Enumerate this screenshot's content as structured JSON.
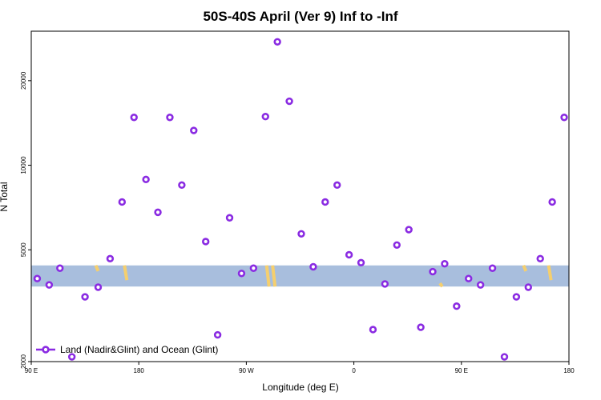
{
  "chart_data": {
    "type": "scatter",
    "title": "50S-40S April (Ver 9)   Inf to -Inf",
    "xlabel": "Longitude (deg E)",
    "ylabel": "N Total",
    "y_scale": "log",
    "xlim": [
      90,
      540
    ],
    "ylim": [
      2000,
      30000
    ],
    "x_ticks": [
      {
        "value": 90,
        "label": "90 E"
      },
      {
        "value": 180,
        "label": "180"
      },
      {
        "value": 270,
        "label": "90 W"
      },
      {
        "value": 360,
        "label": "0"
      },
      {
        "value": 450,
        "label": "90 E"
      },
      {
        "value": 540,
        "label": "180"
      }
    ],
    "y_ticks": [
      {
        "value": 2000,
        "label": "2000"
      },
      {
        "value": 5000,
        "label": "5000"
      },
      {
        "value": 10000,
        "label": "10000"
      },
      {
        "value": 20000,
        "label": "20000"
      }
    ],
    "band": {
      "ymin": 3700,
      "ymax": 4400,
      "color": "#a8bedd"
    },
    "land_segments": [
      {
        "x": 146,
        "ymin": 4200,
        "ymax": 4400
      },
      {
        "x": 170,
        "ymin": 3900,
        "ymax": 4400
      },
      {
        "x": 289,
        "ymin": 3700,
        "ymax": 4400
      },
      {
        "x": 294,
        "ymin": 3700,
        "ymax": 4400
      },
      {
        "x": 434,
        "ymin": 3700,
        "ymax": 3800
      },
      {
        "x": 504,
        "ymin": 4200,
        "ymax": 4400
      },
      {
        "x": 525,
        "ymin": 3900,
        "ymax": 4400
      }
    ],
    "land_color": "#f5cf6e",
    "series": [
      {
        "name": "Land (Nadir&Glint) and Ocean (Glint)",
        "color": "#8a2be2",
        "points": [
          [
            95,
            3950
          ],
          [
            105,
            3750
          ],
          [
            114,
            4300
          ],
          [
            124,
            2080
          ],
          [
            135,
            3400
          ],
          [
            146,
            3680
          ],
          [
            156,
            4650
          ],
          [
            166,
            7400
          ],
          [
            176,
            14800
          ],
          [
            186,
            8900
          ],
          [
            196,
            6800
          ],
          [
            206,
            14800
          ],
          [
            216,
            8500
          ],
          [
            226,
            13300
          ],
          [
            236,
            5350
          ],
          [
            246,
            2490
          ],
          [
            256,
            6500
          ],
          [
            266,
            4120
          ],
          [
            276,
            4300
          ],
          [
            286,
            14900
          ],
          [
            296,
            27500
          ],
          [
            306,
            16900
          ],
          [
            316,
            5700
          ],
          [
            326,
            4350
          ],
          [
            336,
            7400
          ],
          [
            346,
            8500
          ],
          [
            356,
            4800
          ],
          [
            366,
            4500
          ],
          [
            376,
            2600
          ],
          [
            386,
            3780
          ],
          [
            396,
            5200
          ],
          [
            406,
            5900
          ],
          [
            416,
            2650
          ],
          [
            426,
            4180
          ],
          [
            436,
            4460
          ],
          [
            446,
            3150
          ],
          [
            456,
            3950
          ],
          [
            466,
            3750
          ],
          [
            476,
            4300
          ],
          [
            486,
            2080
          ],
          [
            496,
            3400
          ],
          [
            506,
            3680
          ],
          [
            516,
            4650
          ],
          [
            526,
            7400
          ],
          [
            536,
            14800
          ]
        ]
      }
    ],
    "legend": {
      "position": "bottom-left"
    },
    "grid": false
  }
}
